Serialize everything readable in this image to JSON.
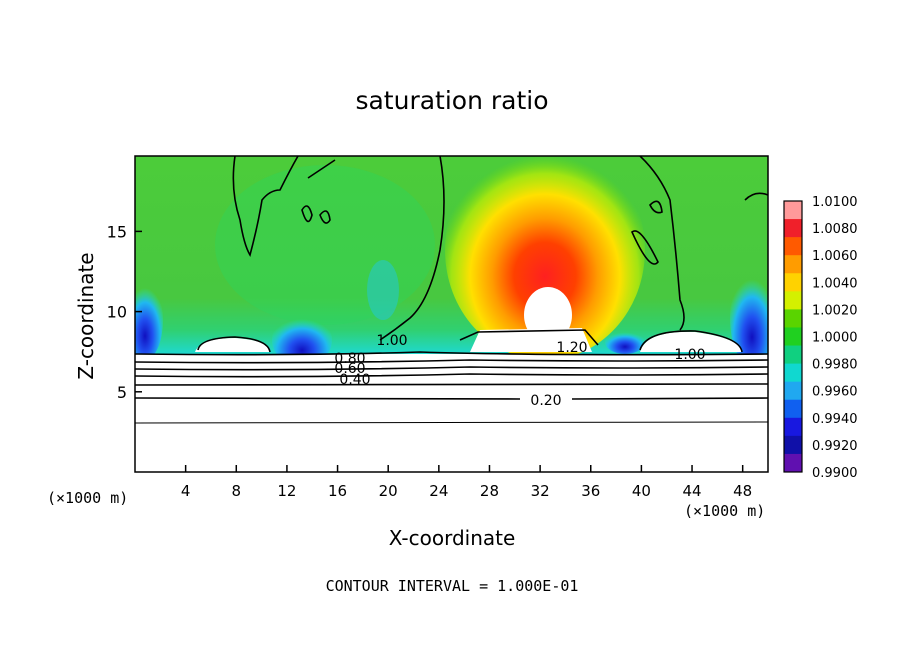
{
  "chart_data": {
    "type": "heatmap",
    "title": "saturation ratio",
    "xlabel": "X-coordinate",
    "ylabel": "Z-coordinate",
    "x_unit": "(×1000 m)",
    "xlim": [
      0,
      50
    ],
    "ylim": [
      0,
      19.7
    ],
    "x_ticks": [
      4,
      8,
      12,
      16,
      20,
      24,
      28,
      32,
      36,
      40,
      44,
      48
    ],
    "y_ticks": [
      5,
      10,
      15
    ],
    "colorbar": {
      "ticks": [
        "1.0100",
        "1.0080",
        "1.0060",
        "1.0040",
        "1.0020",
        "1.0000",
        "0.9980",
        "0.9960",
        "0.9940",
        "0.9920",
        "0.9900"
      ],
      "colors": [
        "#ff9a9a",
        "#f0202a",
        "#ff5a00",
        "#ff9c00",
        "#ffd200",
        "#d4f000",
        "#5ad400",
        "#20d020",
        "#10d080",
        "#10d8d0",
        "#20a8f0",
        "#1060f0",
        "#1818e0",
        "#1010a8",
        "#6010b0"
      ]
    },
    "contour_labels": [
      "1.00",
      "1.20",
      "1.00",
      "0.80",
      "0.60",
      "0.40",
      "0.20"
    ],
    "contour_interval": "CONTOUR INTERVAL = 1.000E-01",
    "regions": [
      {
        "name": "supersaturated core",
        "x": 32,
        "z": 11,
        "value": 1.008
      },
      {
        "name": "background",
        "value": 1.0
      },
      {
        "name": "subsaturated pockets",
        "x": [
          13,
          49
        ],
        "z": 8.5,
        "value": 0.992
      }
    ]
  }
}
